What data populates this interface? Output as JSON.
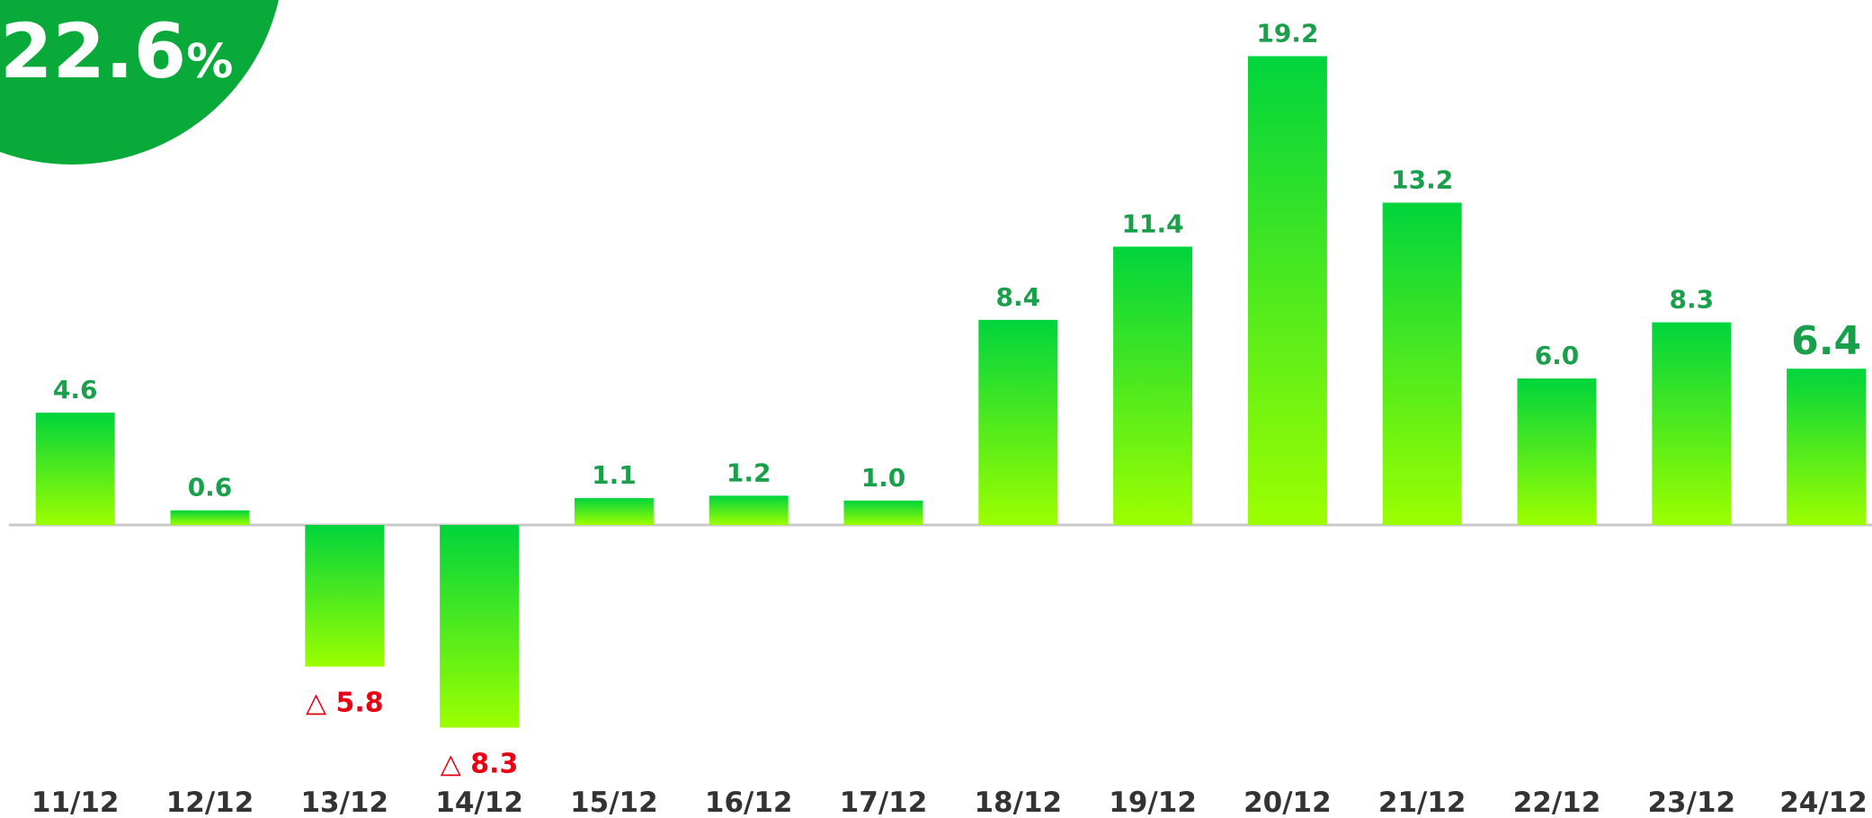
{
  "chart_data": {
    "type": "bar",
    "badge": {
      "value": "22.6",
      "unit": "%",
      "color": "#0aaa3a"
    },
    "categories": [
      "11/12",
      "12/12",
      "13/12",
      "14/12",
      "15/12",
      "16/12",
      "17/12",
      "18/12",
      "19/12",
      "20/12",
      "21/12",
      "22/12",
      "23/12",
      "24/12"
    ],
    "values": [
      4.6,
      0.6,
      -5.8,
      -8.3,
      1.1,
      1.2,
      1.0,
      8.4,
      11.4,
      19.2,
      13.2,
      6.0,
      8.3,
      6.4
    ],
    "value_labels": [
      "4.6",
      "0.6",
      "△ 5.8",
      "△ 8.3",
      "1.1",
      "1.2",
      "1.0",
      "8.4",
      "11.4",
      "19.2",
      "13.2",
      "6.0",
      "8.3",
      "6.4"
    ],
    "gradient": [
      "#00d43c",
      "#9cff00"
    ],
    "label_color": "#1a9f4a",
    "negative_label_color": "#e60012",
    "ylim": [
      -12,
      21.5
    ]
  }
}
